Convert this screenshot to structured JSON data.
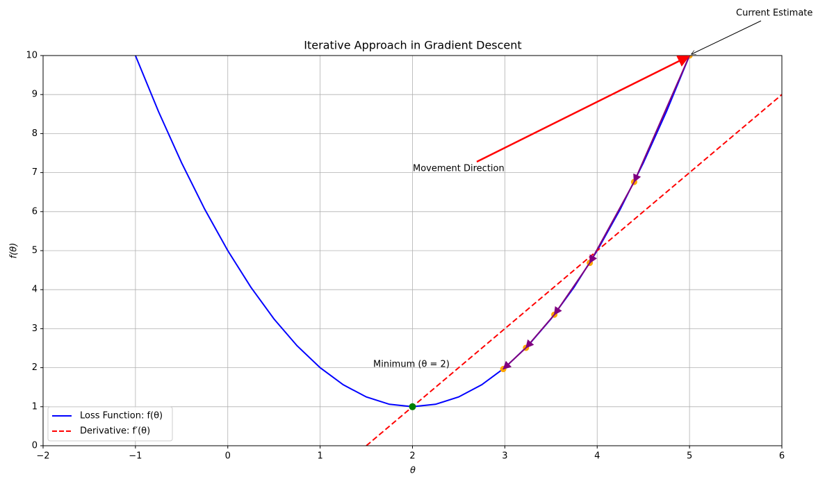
{
  "chart_data": {
    "type": "line",
    "title": "Iterative Approach in Gradient Descent",
    "xlabel": "θ",
    "ylabel": "f(θ)",
    "xlim": [
      -2,
      6
    ],
    "ylim": [
      0,
      10
    ],
    "xticks": [
      {
        "value": -2,
        "label": "−2"
      },
      {
        "value": -1,
        "label": "−1"
      },
      0,
      1,
      2,
      3,
      4,
      5,
      6
    ],
    "yticks": [
      0,
      1,
      2,
      3,
      4,
      5,
      6,
      7,
      8,
      9,
      10
    ],
    "grid": true,
    "legend": "lower left",
    "series": [
      {
        "name": "Loss Function: f(θ)",
        "color": "#0000ff",
        "style": "solid",
        "x": [
          -1,
          -0.75,
          -0.5,
          -0.25,
          0,
          0.25,
          0.5,
          0.75,
          1,
          1.25,
          1.5,
          1.75,
          2,
          2.25,
          2.5,
          2.75,
          3,
          3.25,
          3.5,
          3.75,
          4,
          4.25,
          4.5,
          4.75,
          5
        ],
        "values": [
          10,
          8.5625,
          7.25,
          6.0625,
          5,
          4.0625,
          3.25,
          2.5625,
          2,
          1.5625,
          1.25,
          1.0625,
          1,
          1.0625,
          1.25,
          1.5625,
          2,
          2.5625,
          3.25,
          4.0625,
          5,
          6.0625,
          7.25,
          8.5625,
          10
        ]
      },
      {
        "name": "Derivative: f′(θ)",
        "color": "#ff0000",
        "style": "dashed",
        "x": [
          1.5,
          6
        ],
        "values": [
          0,
          9
        ]
      }
    ],
    "iterations": {
      "color": "#ffa500",
      "arrow_color": "#800080",
      "x": [
        5,
        4.4,
        3.92,
        3.536,
        3.229,
        2.983
      ],
      "values": [
        10,
        6.76,
        4.686,
        3.359,
        2.51,
        1.966
      ]
    },
    "minimum": {
      "color": "#008000",
      "x": [
        2
      ],
      "values": [
        1
      ]
    },
    "annotations": [
      {
        "text": "Current Estimate",
        "color": "#000000"
      },
      {
        "text": "Movement Direction",
        "color": "#ff0000"
      },
      {
        "text": "Minimum (θ = 2)"
      }
    ]
  }
}
